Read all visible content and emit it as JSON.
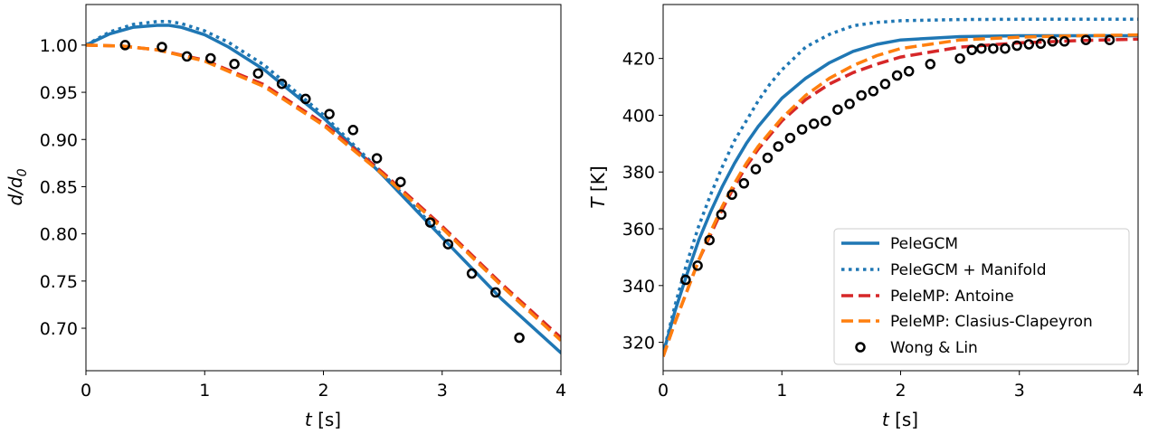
{
  "chart_data": [
    {
      "type": "line",
      "xlabel_var": "t",
      "xlabel_unit": " [s]",
      "ylabel_var": "d/d",
      "ylabel_sub": "0",
      "xlim": [
        0,
        4
      ],
      "ylim": [
        0.655,
        1.043
      ],
      "xticks": [
        0,
        1,
        2,
        3,
        4
      ],
      "xtick_labels": [
        "0",
        "1",
        "2",
        "3",
        "4"
      ],
      "yticks": [
        0.7,
        0.75,
        0.8,
        0.85,
        0.9,
        0.95,
        1.0
      ],
      "ytick_labels": [
        "0.70",
        "0.75",
        "0.80",
        "0.85",
        "0.90",
        "0.95",
        "1.00"
      ],
      "grid": false,
      "series": [
        {
          "name": "PeleGCM",
          "color": "#1f77b4",
          "style": "solid",
          "x": [
            0,
            0.2,
            0.4,
            0.6,
            0.7,
            0.8,
            1.0,
            1.2,
            1.5,
            2.0,
            2.5,
            3.0,
            3.5,
            4.0
          ],
          "y": [
            1.0,
            1.012,
            1.019,
            1.021,
            1.021,
            1.019,
            1.011,
            0.998,
            0.974,
            0.923,
            0.862,
            0.796,
            0.731,
            0.674
          ]
        },
        {
          "name": "PeleGCM + Manifold",
          "color": "#1f77b4",
          "style": "dotted",
          "x": [
            0,
            0.2,
            0.4,
            0.6,
            0.7,
            0.8,
            1.0,
            1.2,
            1.5,
            2.0,
            2.5,
            3.0
          ],
          "y": [
            1.0,
            1.014,
            1.022,
            1.025,
            1.025,
            1.023,
            1.015,
            1.003,
            0.979,
            0.926,
            0.864,
            0.798
          ]
        },
        {
          "name": "PeleMP: Antoine",
          "color": "#d62728",
          "style": "dashed",
          "x": [
            0,
            0.3,
            0.6,
            1.0,
            1.5,
            2.0,
            2.5,
            3.0,
            3.5,
            4.0
          ],
          "y": [
            1.0,
            0.999,
            0.995,
            0.984,
            0.958,
            0.917,
            0.865,
            0.808,
            0.747,
            0.69
          ]
        },
        {
          "name": "PeleMP: Clasius-Clapeyron",
          "color": "#ff7f0e",
          "style": "dashed",
          "x": [
            0,
            0.3,
            0.6,
            1.0,
            1.5,
            2.0,
            2.5,
            3.0,
            3.5,
            4.0
          ],
          "y": [
            1.0,
            0.999,
            0.995,
            0.983,
            0.956,
            0.915,
            0.863,
            0.806,
            0.745,
            0.687
          ]
        }
      ],
      "scatter": {
        "name": "Wong & Lin",
        "x": [
          0.33,
          0.64,
          0.85,
          1.05,
          1.25,
          1.45,
          1.65,
          1.85,
          2.05,
          2.25,
          2.45,
          2.65,
          2.9,
          3.05,
          3.25,
          3.45,
          3.65
        ],
        "y": [
          1.0,
          0.998,
          0.988,
          0.986,
          0.98,
          0.97,
          0.959,
          0.943,
          0.927,
          0.91,
          0.88,
          0.855,
          0.812,
          0.789,
          0.758,
          0.738,
          0.69
        ]
      }
    },
    {
      "type": "line",
      "xlabel_var": "t",
      "xlabel_unit": " [s]",
      "ylabel_var": "T",
      "ylabel_unit": " [K]",
      "xlim": [
        0,
        4
      ],
      "ylim": [
        310,
        439
      ],
      "xticks": [
        0,
        1,
        2,
        3,
        4
      ],
      "xtick_labels": [
        "0",
        "1",
        "2",
        "3",
        "4"
      ],
      "yticks": [
        320,
        340,
        360,
        380,
        400,
        420
      ],
      "ytick_labels": [
        "320",
        "340",
        "360",
        "380",
        "400",
        "420"
      ],
      "grid": false,
      "legend": "lower right",
      "series": [
        {
          "name": "PeleGCM",
          "color": "#1f77b4",
          "style": "solid",
          "x": [
            0,
            0.1,
            0.2,
            0.3,
            0.4,
            0.5,
            0.6,
            0.7,
            0.8,
            0.9,
            1.0,
            1.2,
            1.4,
            1.6,
            1.8,
            2.0,
            2.5,
            3.0,
            4.0
          ],
          "y": [
            316,
            331,
            344,
            356,
            366,
            375,
            383,
            390,
            396,
            401,
            406,
            413,
            418.5,
            422.5,
            425,
            426.5,
            427.7,
            428,
            428
          ]
        },
        {
          "name": "PeleGCM + Manifold",
          "color": "#1f77b4",
          "style": "dotted",
          "x": [
            0,
            0.1,
            0.2,
            0.3,
            0.4,
            0.5,
            0.6,
            0.7,
            0.8,
            0.9,
            1.0,
            1.2,
            1.4,
            1.6,
            1.8,
            2.0,
            2.5,
            3.0,
            4.0
          ],
          "y": [
            316,
            333,
            348,
            361,
            372,
            382,
            391,
            398,
            405,
            411,
            416,
            424,
            428.5,
            431.5,
            432.7,
            433.3,
            433.7,
            433.8,
            433.8
          ]
        },
        {
          "name": "PeleMP: Antoine",
          "color": "#d62728",
          "style": "dashed",
          "x": [
            0,
            0.1,
            0.2,
            0.3,
            0.4,
            0.5,
            0.6,
            0.7,
            0.8,
            0.9,
            1.0,
            1.2,
            1.4,
            1.6,
            1.8,
            2.0,
            2.5,
            3.0,
            3.5,
            4.0
          ],
          "y": [
            315,
            327,
            338,
            349,
            358,
            367,
            375,
            382,
            388,
            393,
            398,
            405.5,
            411,
            415,
            418,
            420.5,
            424,
            425.5,
            426.3,
            426.8
          ]
        },
        {
          "name": "PeleMP: Clasius-Clapeyron",
          "color": "#ff7f0e",
          "style": "dashed",
          "x": [
            0,
            0.1,
            0.2,
            0.3,
            0.4,
            0.5,
            0.6,
            0.7,
            0.8,
            0.9,
            1.0,
            1.2,
            1.4,
            1.6,
            1.8,
            2.0,
            2.5,
            3.0,
            3.5,
            4.0
          ],
          "y": [
            315,
            327,
            338,
            349,
            359,
            368,
            376,
            383,
            389,
            394,
            399,
            407,
            413,
            417.5,
            421,
            423.5,
            426.5,
            427.5,
            428,
            428.3
          ]
        }
      ],
      "scatter": {
        "name": "Wong & Lin",
        "x": [
          0.19,
          0.29,
          0.39,
          0.49,
          0.58,
          0.68,
          0.78,
          0.88,
          0.97,
          1.07,
          1.17,
          1.27,
          1.37,
          1.47,
          1.57,
          1.67,
          1.77,
          1.87,
          1.97,
          2.07,
          2.25,
          2.5,
          2.6,
          2.68,
          2.78,
          2.88,
          2.98,
          3.08,
          3.18,
          3.28,
          3.38,
          3.56,
          3.76
        ],
        "y": [
          342,
          347,
          356,
          365,
          372,
          376,
          381,
          385,
          389,
          392,
          395,
          397,
          398,
          402,
          404,
          407,
          408.5,
          411,
          414,
          415.5,
          418,
          420,
          423,
          423.5,
          423.5,
          423.5,
          424.5,
          425,
          425.2,
          426,
          426,
          426.5,
          426.5
        ]
      }
    }
  ]
}
